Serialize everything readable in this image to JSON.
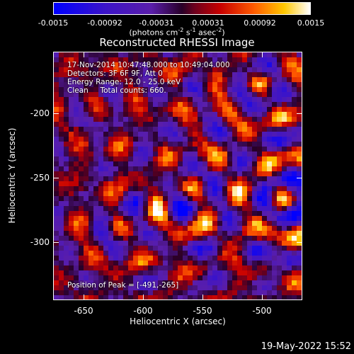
{
  "colorbar": {
    "tick_labels": [
      "-0.0015",
      "-0.00092",
      "-0.00031",
      "0.00031",
      "0.00092",
      "0.0015"
    ],
    "units_text": "(photons cm",
    "units_exp1": "-2",
    "units_mid1": " s",
    "units_exp2": "-1",
    "units_mid2": " asec",
    "units_exp3": "-2",
    "units_end": ")",
    "range": [
      -0.0015,
      0.0015
    ]
  },
  "title": "Reconstructed RHESSI Image",
  "info": {
    "time_range": "17-Nov-2014 10:47:48.000 to 10:49:04.000",
    "detectors": "Detectors: 3F 6F 9F, Att 0",
    "energy": "Energy Range: 12.0 - 25.0 keV",
    "clean": "Clean     Total counts: 660.",
    "peak": "Position of Peak = [-491,-265]"
  },
  "axes": {
    "xlabel": "Heliocentric X (arcsec)",
    "ylabel": "Heliocentric Y (arcsec)",
    "x_ticks": [
      "-650",
      "-600",
      "-550",
      "-500"
    ],
    "y_ticks": [
      "-200",
      "-250",
      "-300"
    ],
    "xlim": [
      -673,
      -477
    ],
    "ylim": [
      -351,
      -156
    ]
  },
  "timestamp": "19-May-2022 15:52",
  "chart_data": {
    "type": "heatmap",
    "title": "Reconstructed RHESSI Image",
    "xlabel": "Heliocentric X (arcsec)",
    "ylabel": "Heliocentric Y (arcsec)",
    "xlim": [
      -673,
      -477
    ],
    "ylim": [
      -351,
      -156
    ],
    "x_ticks": [
      -650,
      -600,
      -550,
      -500
    ],
    "y_ticks": [
      -200,
      -250,
      -300
    ],
    "colorbar_range": [
      -0.0015,
      0.0015
    ],
    "colorbar_ticks": [
      -0.0015,
      -0.00092,
      -0.00031,
      0.00031,
      0.00092,
      0.0015
    ],
    "peak_position": [
      -491,
      -265
    ]
  }
}
